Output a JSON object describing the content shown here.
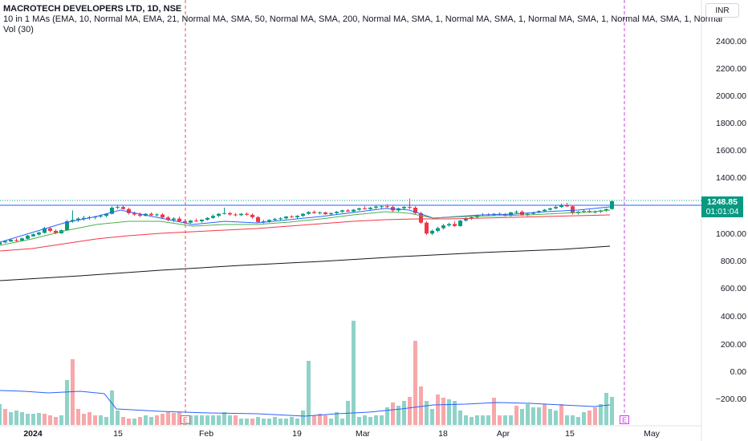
{
  "header": {
    "title_line": "MACROTECH DEVELOPERS LTD, 1D, NSE",
    "indicator_line": " 10 in 1 MAs (EMA, 10, Normal MA, EMA, 21, Normal MA, SMA, 50, Normal MA, SMA, 200, Normal MA, SMA, 1, Normal MA, SMA, 1, Normal MA, SMA, 1, Normal MA, SMA, 1, Normal",
    "volume_line": "Vol (30)"
  },
  "currency_button": "INR",
  "price_axis": [
    "2400.00",
    "2200.00",
    "2000.00",
    "1800.00",
    "1600.00",
    "1400.00",
    "1000.00",
    "800.00",
    "600.00",
    "400.00",
    "200.00",
    "0.00",
    "−200.00"
  ],
  "time_axis": [
    {
      "label": "2024",
      "bold": true
    },
    {
      "label": "15",
      "bold": false
    },
    {
      "label": "Feb",
      "bold": false
    },
    {
      "label": "19",
      "bold": false
    },
    {
      "label": "Mar",
      "bold": false
    },
    {
      "label": "18",
      "bold": false
    },
    {
      "label": "Apr",
      "bold": false
    },
    {
      "label": "15",
      "bold": false
    },
    {
      "label": "May",
      "bold": false
    }
  ],
  "last_price": {
    "price": "1248.85",
    "countdown": "01:01:04"
  },
  "earnings_markers": [
    {
      "label": "E",
      "color": "#e0535f"
    },
    {
      "label": "E",
      "color": "#c742e0"
    }
  ],
  "colors": {
    "up": "#089981",
    "down": "#f23645",
    "vol_up": "#8fd3c8",
    "vol_down": "#f7a8ab",
    "ma_fast": "#2962ff",
    "ma_mid": "#4caf50",
    "ma_slow": "#f23645",
    "ma_200": "#131722",
    "earnings_line_1": "#e0535f",
    "earnings_line_2": "#c742e0"
  }
}
